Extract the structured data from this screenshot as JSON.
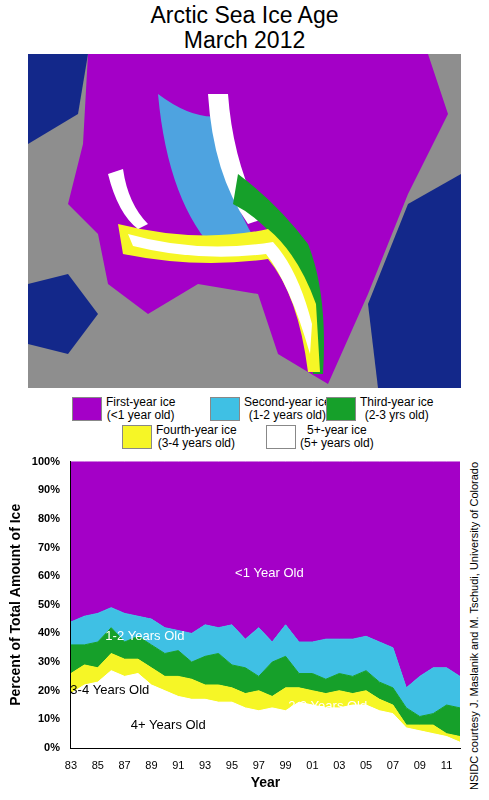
{
  "title": "Arctic Sea Ice Age",
  "subtitle": "March 2012",
  "map_legend": [
    {
      "label": "First-year ice",
      "sublabel": "(<1 year old)",
      "color": "#a400c7"
    },
    {
      "label": "Second-year ice",
      "sublabel": "(1-2 years old)",
      "color": "#3fc0e4"
    },
    {
      "label": "Third-year ice",
      "sublabel": "(2-3 yrs old)",
      "color": "#16a02a"
    },
    {
      "label": "Fourth-year ice",
      "sublabel": "(3-4 years old)",
      "color": "#f6f626"
    },
    {
      "label": "5+-year ice",
      "sublabel": "(5+ years old)",
      "color": "#ffffff"
    }
  ],
  "credit": "NSIDC courtesy J. Maslanik and M. Tschudi, University of Colorado",
  "chart_data": {
    "type": "area",
    "stacked": true,
    "x_label": "Year",
    "y_label": "Percent of Total Amount of Ice",
    "categories": [
      "83",
      null,
      "85",
      null,
      "87",
      null,
      "89",
      null,
      "91",
      null,
      "93",
      null,
      "95",
      null,
      "97",
      null,
      "99",
      null,
      "01",
      null,
      "03",
      null,
      "05",
      null,
      "07",
      null,
      "09",
      null,
      "11",
      null
    ],
    "series": [
      {
        "name": "4+ Years Old",
        "color": "#ffffff",
        "values": [
          19,
          22,
          23,
          27,
          25,
          26,
          22,
          20,
          18,
          17,
          17,
          16,
          16,
          14,
          13,
          14,
          13,
          16,
          15,
          14,
          14,
          15,
          15,
          13,
          12,
          7,
          6,
          5,
          4,
          2
        ]
      },
      {
        "name": "3-4 Years Old",
        "color": "#f6f626",
        "values": [
          7,
          7,
          5,
          6,
          6,
          5,
          6,
          5,
          7,
          7,
          5,
          6,
          5,
          5,
          7,
          4,
          8,
          5,
          5,
          5,
          6,
          4,
          5,
          4,
          3,
          1,
          2,
          3,
          1,
          2
        ]
      },
      {
        "name": "2-3 Years Old",
        "color": "#16a02a",
        "values": [
          10,
          7,
          9,
          9,
          6,
          8,
          8,
          8,
          9,
          6,
          10,
          11,
          8,
          9,
          5,
          12,
          11,
          5,
          6,
          5,
          6,
          6,
          7,
          6,
          6,
          6,
          3,
          4,
          10,
          10
        ]
      },
      {
        "name": "1-2 Years Old",
        "color": "#3fc0e4",
        "values": [
          8,
          10,
          10,
          7,
          10,
          7,
          9,
          9,
          7,
          10,
          11,
          9,
          14,
          10,
          17,
          7,
          11,
          11,
          11,
          14,
          12,
          13,
          12,
          14,
          14,
          7,
          14,
          16,
          13,
          11
        ]
      },
      {
        "name": "<1 Year Old",
        "color": "#a400c7",
        "values": [
          56,
          54,
          53,
          51,
          53,
          54,
          55,
          58,
          59,
          60,
          57,
          58,
          57,
          62,
          58,
          63,
          57,
          63,
          63,
          62,
          62,
          62,
          61,
          63,
          65,
          79,
          75,
          72,
          72,
          75
        ]
      }
    ],
    "ylim": [
      0,
      100
    ],
    "yticks": [
      {
        "value": 0,
        "label": "0%"
      },
      {
        "value": 10,
        "label": "10%"
      },
      {
        "value": 20,
        "label": "20%"
      },
      {
        "value": 30,
        "label": "30%"
      },
      {
        "value": 40,
        "label": "40%"
      },
      {
        "value": 50,
        "label": "50%"
      },
      {
        "value": 60,
        "label": "60%"
      },
      {
        "value": 70,
        "label": "70%"
      },
      {
        "value": 80,
        "label": "80%"
      },
      {
        "value": 90,
        "label": "90%"
      },
      {
        "value": 100,
        "label": "100%"
      }
    ],
    "grid": false
  }
}
